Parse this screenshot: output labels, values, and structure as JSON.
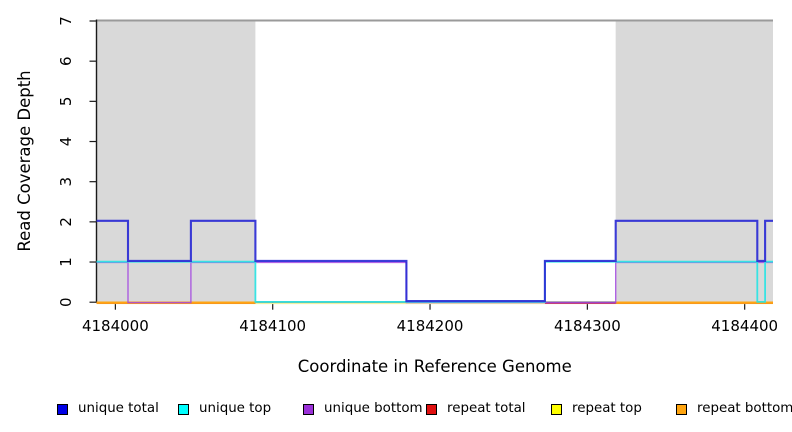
{
  "page": {
    "background": "#ffffff"
  },
  "chart_data": {
    "type": "line",
    "variant": "step-coverage",
    "title": "",
    "xlabel": "Coordinate in Reference Genome",
    "ylabel": "Read Coverage Depth",
    "xlim": [
      4183988,
      4184418
    ],
    "ylim": [
      0,
      7
    ],
    "x_ticks": [
      "4184000",
      "4184100",
      "4184200",
      "4184300",
      "4184400"
    ],
    "x_tick_values": [
      4184000,
      4184100,
      4184200,
      4184300,
      4184400
    ],
    "y_ticks": [
      "0",
      "1",
      "2",
      "3",
      "4",
      "5",
      "6",
      "7"
    ],
    "y_tick_values": [
      0,
      1,
      2,
      3,
      4,
      5,
      6,
      7
    ],
    "grid": false,
    "legend_position": "bottom",
    "axis_color": "#1a1a1a",
    "text_color": "#000000",
    "plot_top_border_color": "#9a9a9a",
    "shaded_regions": [
      {
        "name": "repeat-region-left",
        "x0": 4183988,
        "x1": 4184089,
        "color": "#d9d9d9"
      },
      {
        "name": "repeat-region-right",
        "x0": 4184318,
        "x1": 4184418,
        "color": "#d9d9d9"
      }
    ],
    "series": [
      {
        "name": "repeat top",
        "color": "#f0f0a0",
        "width": 1.4,
        "dy": 1.2,
        "opacity": 1,
        "segments": [
          [
            [
              4183988,
              0
            ],
            [
              4184418,
              null
            ]
          ]
        ]
      },
      {
        "name": "repeat total",
        "color": "#cd3d5e",
        "width": 1.5,
        "dy": 1.0,
        "opacity": 1,
        "segments": [
          [
            [
              4183988,
              0
            ],
            [
              4184089,
              null
            ]
          ],
          [
            [
              4184273,
              0
            ],
            [
              4184418,
              null
            ]
          ]
        ]
      },
      {
        "name": "repeat bottom",
        "color": "#ffa512",
        "width": 2.4,
        "dy": 0.5,
        "opacity": 1,
        "segments": [
          [
            [
              4183988,
              0
            ],
            [
              4184089,
              null
            ]
          ],
          [
            [
              4184318,
              0
            ],
            [
              4184418,
              null
            ]
          ]
        ]
      },
      {
        "name": "unique bottom",
        "color": "#a348e0",
        "width": 1.4,
        "dy": 0.4,
        "opacity": 0.85,
        "segments": [
          [
            [
              4183988,
              1
            ],
            [
              4184008,
              0
            ],
            [
              4184048,
              1
            ],
            [
              4184185,
              0
            ],
            [
              4184318,
              1
            ],
            [
              4184418,
              null
            ]
          ]
        ]
      },
      {
        "name": "unique top",
        "color": "#27e3e3",
        "width": 1.8,
        "dy": -0.3,
        "opacity": 0.9,
        "segments": [
          [
            [
              4183988,
              1
            ],
            [
              4184089,
              0
            ],
            [
              4184273,
              1
            ],
            [
              4184408,
              0
            ],
            [
              4184413,
              1
            ],
            [
              4184418,
              null
            ]
          ]
        ]
      },
      {
        "name": "unique total",
        "color": "#2b2bd5",
        "width": 2.1,
        "dy": -1.1,
        "opacity": 0.92,
        "segments": [
          [
            [
              4183988,
              2
            ],
            [
              4184008,
              1
            ],
            [
              4184048,
              2
            ],
            [
              4184089,
              1
            ],
            [
              4184185,
              0
            ],
            [
              4184273,
              1
            ],
            [
              4184318,
              2
            ],
            [
              4184408,
              1
            ],
            [
              4184413,
              2
            ],
            [
              4184418,
              null
            ]
          ]
        ]
      }
    ],
    "legend": [
      {
        "label": "unique total",
        "color": "#0000e6"
      },
      {
        "label": "unique top",
        "color": "#00ffff"
      },
      {
        "label": "unique bottom",
        "color": "#9a30d8"
      },
      {
        "label": "repeat total",
        "color": "#e01010"
      },
      {
        "label": "repeat top",
        "color": "#ffff00"
      },
      {
        "label": "repeat bottom",
        "color": "#ffa510"
      }
    ]
  }
}
